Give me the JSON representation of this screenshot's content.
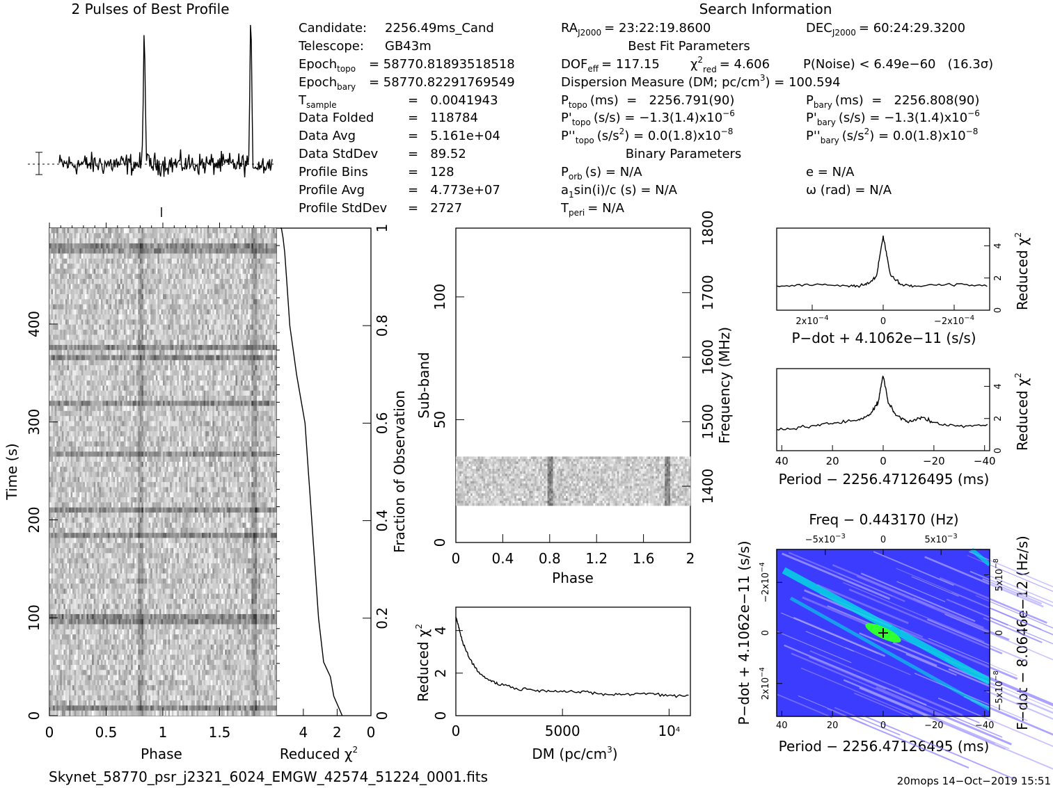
{
  "title": "2 Pulses of Best Profile",
  "search_title": "Search Information",
  "info": {
    "candidate": {
      "label": "Candidate:",
      "value": "2256.49ms_Cand"
    },
    "telescope": {
      "label": "Telescope:",
      "value": "GB43m"
    },
    "epoch_topo": {
      "label": "Epoch",
      "sub": "topo",
      "value": "= 58770.81893518518"
    },
    "epoch_bary": {
      "label": "Epoch",
      "sub": "bary",
      "value": "= 58770.82291769549"
    },
    "t_sample": {
      "label": "T",
      "sub": "sample",
      "value": "=   0.0041943"
    },
    "data_folded": {
      "label": "Data Folded",
      "value": "=   118784"
    },
    "data_avg": {
      "label": "Data Avg",
      "value": "=   5.161e+04"
    },
    "data_stddev": {
      "label": "Data StdDev",
      "value": "=   89.52"
    },
    "profile_bins": {
      "label": "Profile Bins",
      "value": "=   128"
    },
    "profile_avg": {
      "label": "Profile Avg",
      "value": "=   4.773e+07"
    },
    "profile_stddev": {
      "label": "Profile StdDev",
      "value": "=   2727"
    }
  },
  "search": {
    "ra_label": "RA",
    "ra_sub": "J2000",
    "ra_value": "= 23:22:19.8600",
    "dec_label": "DEC",
    "dec_sub": "J2000",
    "dec_value": "= 60:24:29.3200",
    "best_fit_title": "Best Fit Parameters",
    "dof_label": "DOF",
    "dof_sub": "eff",
    "dof_value": "= 117.15",
    "chi_label": "χ",
    "chi_sup": "2",
    "chi_sub": "red",
    "chi_value": "= 4.606",
    "pnoise": "P(Noise) < 6.49e−60   (16.3σ)",
    "dm_line": "Dispersion Measure (DM; pc/cm",
    "dm_sup": "3",
    "dm_value": ") = 100.594",
    "ptopo_label": "P",
    "ptopo_sub": "topo",
    "ptopo_value": "(ms)  =   2256.791(90)",
    "pbary_label": "P",
    "pbary_sub": "bary",
    "pbary_value": "(ms)  =   2256.808(90)",
    "pdtopo_label": "P'",
    "pdtopo_sub": "topo",
    "pdtopo_value": "(s/s) = −1.3(1.4)x10",
    "pdtopo_exp": "−6",
    "pdbary_label": "P'",
    "pdbary_sub": "bary",
    "pdbary_value": "(s/s) = −1.3(1.4)x10",
    "pdbary_exp": "−6",
    "pddtopo_label": "P''",
    "pddtopo_sub": "topo",
    "pddtopo_value": "(s/s",
    "pddtopo_sup": "2",
    "pddtopo_value2": ") = 0.0(1.8)x10",
    "pddtopo_exp": "−8",
    "pddbary_label": "P''",
    "pddbary_sub": "bary",
    "pddbary_value": "(s/s",
    "pddbary_sup": "2",
    "pddbary_value2": ") = 0.0(1.8)x10",
    "pddbary_exp": "−8",
    "binary_title": "Binary Parameters",
    "porb_label": "P",
    "porb_sub": "orb",
    "porb_value": "(s) = N/A",
    "e_line": "e = N/A",
    "a1_label": "a",
    "a1_sub": "1",
    "a1_value": "sin(i)/c (s) = N/A",
    "omega_line": "ω (rad) = N/A",
    "tperi_label": "T",
    "tperi_sub": "peri",
    "tperi_value": "= N/A"
  },
  "footer": {
    "filename": "Skynet_58770_psr_j2321_6024_EMGW_42574_51224_0001.fits",
    "stamp": "20mops 14−Oct−2019 15:51"
  },
  "colors": {
    "ink": "#000000",
    "grid_bg": "#3c3cff",
    "grid_hot": "#00e0e0",
    "grid_peak": "#30ff30"
  },
  "chart_data": [
    {
      "id": "profile",
      "type": "line",
      "title": "2 Pulses of Best Profile",
      "x": "phase 0..2 (two cycles)",
      "pulse_phase": [
        0.8,
        1.8
      ],
      "peak_height_rel": 1.0,
      "xlim": [
        0,
        2
      ]
    },
    {
      "id": "time_phase",
      "type": "heatmap",
      "xlabel": "Phase",
      "ylabel": "Time (s)",
      "xlim": [
        0,
        2
      ],
      "ylim": [
        0,
        498
      ],
      "xticks": [
        "0",
        "0.5",
        "1",
        "1.5"
      ],
      "yticks": [
        "0",
        "100",
        "200",
        "300",
        "400"
      ]
    },
    {
      "id": "chi_vs_time",
      "type": "line",
      "xlabel": "Reduced",
      "xlabel_sym": "χ",
      "xlabel_sup": "2",
      "ylabel_right": "Fraction of Observation",
      "xlim": [
        5.6,
        0
      ],
      "ylim": [
        0,
        1
      ],
      "xticks": [
        "4",
        "2",
        "0"
      ],
      "yticks": [
        "0",
        "0.2",
        "0.4",
        "0.6",
        "0.8",
        "1"
      ],
      "x": [
        1.7,
        2.2,
        2.4,
        2.8,
        3.1,
        3.2,
        3.3,
        3.4,
        3.5,
        3.6,
        3.7,
        3.8,
        3.9,
        4.1,
        4.4,
        4.6,
        4.8,
        4.9,
        5.0,
        5.1,
        5.2,
        5.3,
        5.35
      ],
      "y": [
        0.0,
        0.04,
        0.08,
        0.11,
        0.2,
        0.25,
        0.3,
        0.35,
        0.4,
        0.45,
        0.5,
        0.55,
        0.6,
        0.64,
        0.7,
        0.75,
        0.8,
        0.85,
        0.9,
        0.95,
        0.98,
        1.0,
        1.0
      ]
    },
    {
      "id": "subband_phase",
      "type": "heatmap",
      "xlabel": "Phase",
      "ylabel": "Sub-band",
      "ylabel_right": "Frequency (MHz)",
      "xlim": [
        0,
        2
      ],
      "ylim": [
        0,
        128
      ],
      "xticks": [
        "0",
        "0.4",
        "0.8",
        "1.2",
        "1.6",
        "2"
      ],
      "yticks": [
        "0",
        "50",
        "100"
      ],
      "right_ticks": [
        "1400",
        "1500",
        "1600",
        "1700",
        "1800"
      ],
      "band_rows": [
        15,
        35
      ]
    },
    {
      "id": "dm_curve",
      "type": "line",
      "xlabel": "DM (pc/cm",
      "xlabel_sup": "3",
      "xlabel_end": ")",
      "ylabel": "Reduced",
      "ylabel_sym": "χ",
      "ylabel_sup": "2",
      "xlim": [
        0,
        11000
      ],
      "ylim": [
        0,
        5.1
      ],
      "xticks": [
        "0",
        "5000",
        "10"
      ],
      "xtick_last_sup": "4",
      "yticks": [
        "0",
        "2",
        "4"
      ],
      "x": [
        0,
        100,
        300,
        600,
        1000,
        1500,
        2000,
        3000,
        4000,
        5000,
        6000,
        7000,
        8000,
        9000,
        10000,
        11000
      ],
      "y": [
        4.6,
        4.3,
        3.5,
        2.8,
        2.1,
        1.7,
        1.5,
        1.25,
        1.2,
        1.15,
        1.1,
        1.0,
        1.0,
        1.05,
        0.95,
        0.95
      ]
    },
    {
      "id": "pdot_curve",
      "type": "line",
      "xlabel": "P−dot + 4.1062e−11 (s/s)",
      "ylabel_right": "Reduced",
      "ylabel_sym": "χ",
      "ylabel_sup": "2",
      "xlim": [
        0.0003,
        -0.0003
      ],
      "ylim": [
        0,
        5.1
      ],
      "xticks": [
        "2x10",
        "0",
        "−2x10"
      ],
      "xtick_sup": "−4",
      "yticks": [
        "0",
        "2",
        "4"
      ],
      "x": [
        0.0003,
        0.0002,
        0.0001,
        5e-05,
        2e-05,
        0,
        -2e-05,
        -5e-05,
        -0.0001,
        -0.0002,
        -0.0003
      ],
      "y": [
        1.5,
        1.6,
        1.5,
        1.6,
        2.0,
        4.6,
        2.2,
        1.6,
        1.5,
        1.6,
        1.5
      ]
    },
    {
      "id": "period_curve",
      "type": "line",
      "xlabel": "Period − 2256.47126495 (ms)",
      "ylabel_right": "Reduced",
      "ylabel_sym": "χ",
      "ylabel_sup": "2",
      "xlim": [
        42,
        -42
      ],
      "ylim": [
        0,
        5.1
      ],
      "xticks": [
        "40",
        "20",
        "0",
        "−20",
        "−40"
      ],
      "yticks": [
        "0",
        "2",
        "4"
      ],
      "x": [
        42,
        30,
        20,
        10,
        5,
        2,
        0,
        -2,
        -5,
        -10,
        -15,
        -20,
        -30,
        -42
      ],
      "y": [
        1.3,
        1.5,
        1.7,
        1.9,
        2.3,
        3.0,
        4.7,
        3.0,
        2.2,
        1.8,
        2.1,
        1.7,
        1.5,
        1.6
      ]
    },
    {
      "id": "pp_plane",
      "type": "heatmap",
      "title": "Freq − 0.443170 (Hz)",
      "xlabel": "Period − 2256.47126495 (ms)",
      "ylabel": "P−dot + 4.1062e−11 (s/s)",
      "ylabel_right": "F−dot − 8.0646e−12 (Hz/s)",
      "xlim": [
        42,
        -42
      ],
      "xticks": [
        "40",
        "20",
        "0",
        "−20",
        "−40"
      ],
      "top_ticks": [
        "−5x10",
        "0",
        "5x10"
      ],
      "top_sup": "−3",
      "left_ticks": [
        "−2x10",
        "0",
        "2x10"
      ],
      "left_sup": "−4",
      "right_ticks": [
        "5x10",
        "0",
        "−5x10"
      ],
      "right_sup": "−8",
      "peak": [
        0,
        0
      ]
    }
  ]
}
